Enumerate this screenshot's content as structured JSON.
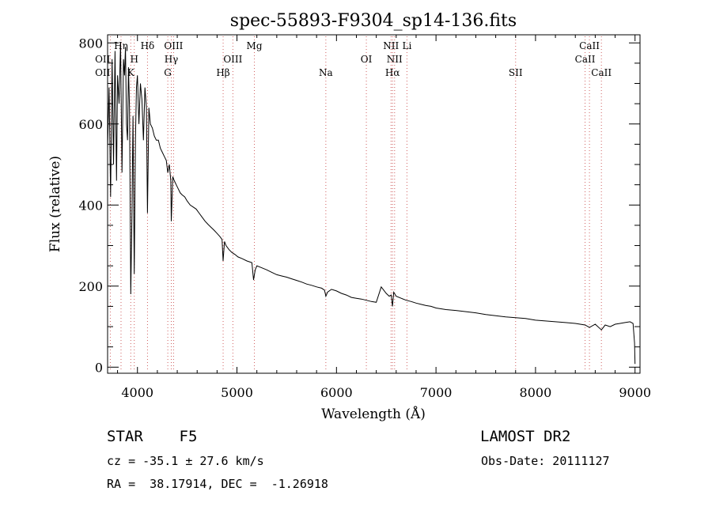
{
  "chart_data": {
    "type": "line",
    "title": "spec-55893-F9304_sp14-136.fits",
    "xlabel": "Wavelength (Å)",
    "ylabel": "Flux (relative)",
    "xlim": [
      3700,
      9050
    ],
    "ylim": [
      -15,
      820
    ],
    "xticks": [
      4000,
      5000,
      6000,
      7000,
      8000,
      9000
    ],
    "yticks": [
      0,
      200,
      400,
      600,
      800
    ],
    "grid": false,
    "series": [
      {
        "x": [
          3700,
          3715,
          3730,
          3745,
          3760,
          3775,
          3790,
          3800,
          3815,
          3830,
          3845,
          3860,
          3870,
          3880,
          3890,
          3900,
          3910,
          3920,
          3933,
          3945,
          3955,
          3968,
          3980,
          3990,
          4000,
          4015,
          4030,
          4045,
          4060,
          4075,
          4090,
          4101,
          4115,
          4130,
          4150,
          4170,
          4190,
          4210,
          4230,
          4250,
          4270,
          4290,
          4305,
          4320,
          4335,
          4340,
          4355,
          4370,
          4390,
          4410,
          4430,
          4450,
          4475,
          4500,
          4530,
          4560,
          4590,
          4620,
          4650,
          4680,
          4710,
          4740,
          4770,
          4800,
          4830,
          4850,
          4861,
          4875,
          4890,
          4920,
          4950,
          4980,
          5010,
          5050,
          5100,
          5150,
          5167,
          5173,
          5183,
          5200,
          5250,
          5300,
          5350,
          5400,
          5450,
          5500,
          5550,
          5600,
          5650,
          5700,
          5750,
          5800,
          5850,
          5880,
          5893,
          5910,
          5950,
          6000,
          6050,
          6100,
          6150,
          6200,
          6250,
          6300,
          6350,
          6400,
          6450,
          6500,
          6530,
          6550,
          6563,
          6575,
          6600,
          6650,
          6700,
          6750,
          6800,
          6850,
          6900,
          6950,
          7000,
          7100,
          7200,
          7300,
          7400,
          7500,
          7600,
          7700,
          7800,
          7900,
          8000,
          8100,
          8200,
          8300,
          8400,
          8498,
          8542,
          8600,
          8662,
          8700,
          8750,
          8800,
          8850,
          8900,
          8950,
          8980,
          8995,
          9000
        ],
        "y": [
          540,
          690,
          420,
          760,
          500,
          780,
          460,
          720,
          650,
          800,
          480,
          760,
          720,
          790,
          600,
          560,
          740,
          640,
          180,
          380,
          620,
          230,
          560,
          690,
          720,
          600,
          700,
          660,
          560,
          690,
          640,
          380,
          640,
          600,
          590,
          570,
          560,
          560,
          540,
          530,
          520,
          510,
          480,
          500,
          460,
          360,
          470,
          460,
          450,
          440,
          430,
          425,
          420,
          410,
          400,
          395,
          390,
          380,
          370,
          360,
          352,
          345,
          338,
          330,
          322,
          315,
          262,
          310,
          300,
          290,
          283,
          278,
          272,
          268,
          262,
          258,
          215,
          225,
          240,
          250,
          245,
          240,
          234,
          228,
          225,
          222,
          218,
          214,
          210,
          205,
          202,
          198,
          195,
          190,
          175,
          185,
          192,
          188,
          182,
          178,
          172,
          170,
          168,
          165,
          162,
          160,
          198,
          182,
          175,
          178,
          150,
          185,
          175,
          170,
          165,
          162,
          158,
          155,
          152,
          150,
          146,
          142,
          140,
          137,
          134,
          130,
          127,
          124,
          122,
          120,
          116,
          114,
          112,
          110,
          108,
          104,
          98,
          106,
          92,
          104,
          100,
          106,
          108,
          110,
          112,
          108,
          60,
          8
        ]
      }
    ],
    "line_annotations": [
      {
        "label": "OII",
        "x": 3727,
        "row": 2,
        "align": "right"
      },
      {
        "label": "OII",
        "x": 3727,
        "row": 3,
        "align": "right"
      },
      {
        "label": "Hη",
        "x": 3835,
        "row": 1
      },
      {
        "label": "H",
        "x": 3968,
        "row": 2
      },
      {
        "label": "K",
        "x": 3933,
        "row": 3
      },
      {
        "label": "Hδ",
        "x": 4101,
        "row": 1
      },
      {
        "label": "OIII",
        "x": 4363,
        "row": 1
      },
      {
        "label": "Hγ",
        "x": 4340,
        "row": 2
      },
      {
        "label": "G",
        "x": 4305,
        "row": 3
      },
      {
        "label": "OIII",
        "x": 4959,
        "row": 2
      },
      {
        "label": "Hβ",
        "x": 4861,
        "row": 3
      },
      {
        "label": "Mg",
        "x": 5175,
        "row": 1
      },
      {
        "label": "Na",
        "x": 5893,
        "row": 3
      },
      {
        "label": "OI",
        "x": 6300,
        "row": 2
      },
      {
        "label": "NII",
        "x": 6548,
        "row": 1
      },
      {
        "label": "Li",
        "x": 6708,
        "row": 1
      },
      {
        "label": "NII",
        "x": 6584,
        "row": 2
      },
      {
        "label": "Hα",
        "x": 6563,
        "row": 3
      },
      {
        "label": "SII",
        "x": 7800,
        "row": 3
      },
      {
        "label": "CaII",
        "x": 8542,
        "row": 1
      },
      {
        "label": "CaII",
        "x": 8498,
        "row": 2
      },
      {
        "label": "CaII",
        "x": 8662,
        "row": 3
      }
    ],
    "marker_lines": [
      3727,
      3835,
      3933,
      3968,
      4101,
      4305,
      4340,
      4363,
      4861,
      4959,
      5175,
      5893,
      6300,
      6548,
      6563,
      6584,
      6708,
      7800,
      8498,
      8542,
      8662
    ]
  },
  "info": {
    "object": "STAR    F5",
    "survey": "LAMOST DR2",
    "velocity": "cz = -35.1 ± 27.6 km/s",
    "obs_date": "Obs-Date: 20111127",
    "coords": "RA =  38.17914, DEC =  -1.26918"
  }
}
